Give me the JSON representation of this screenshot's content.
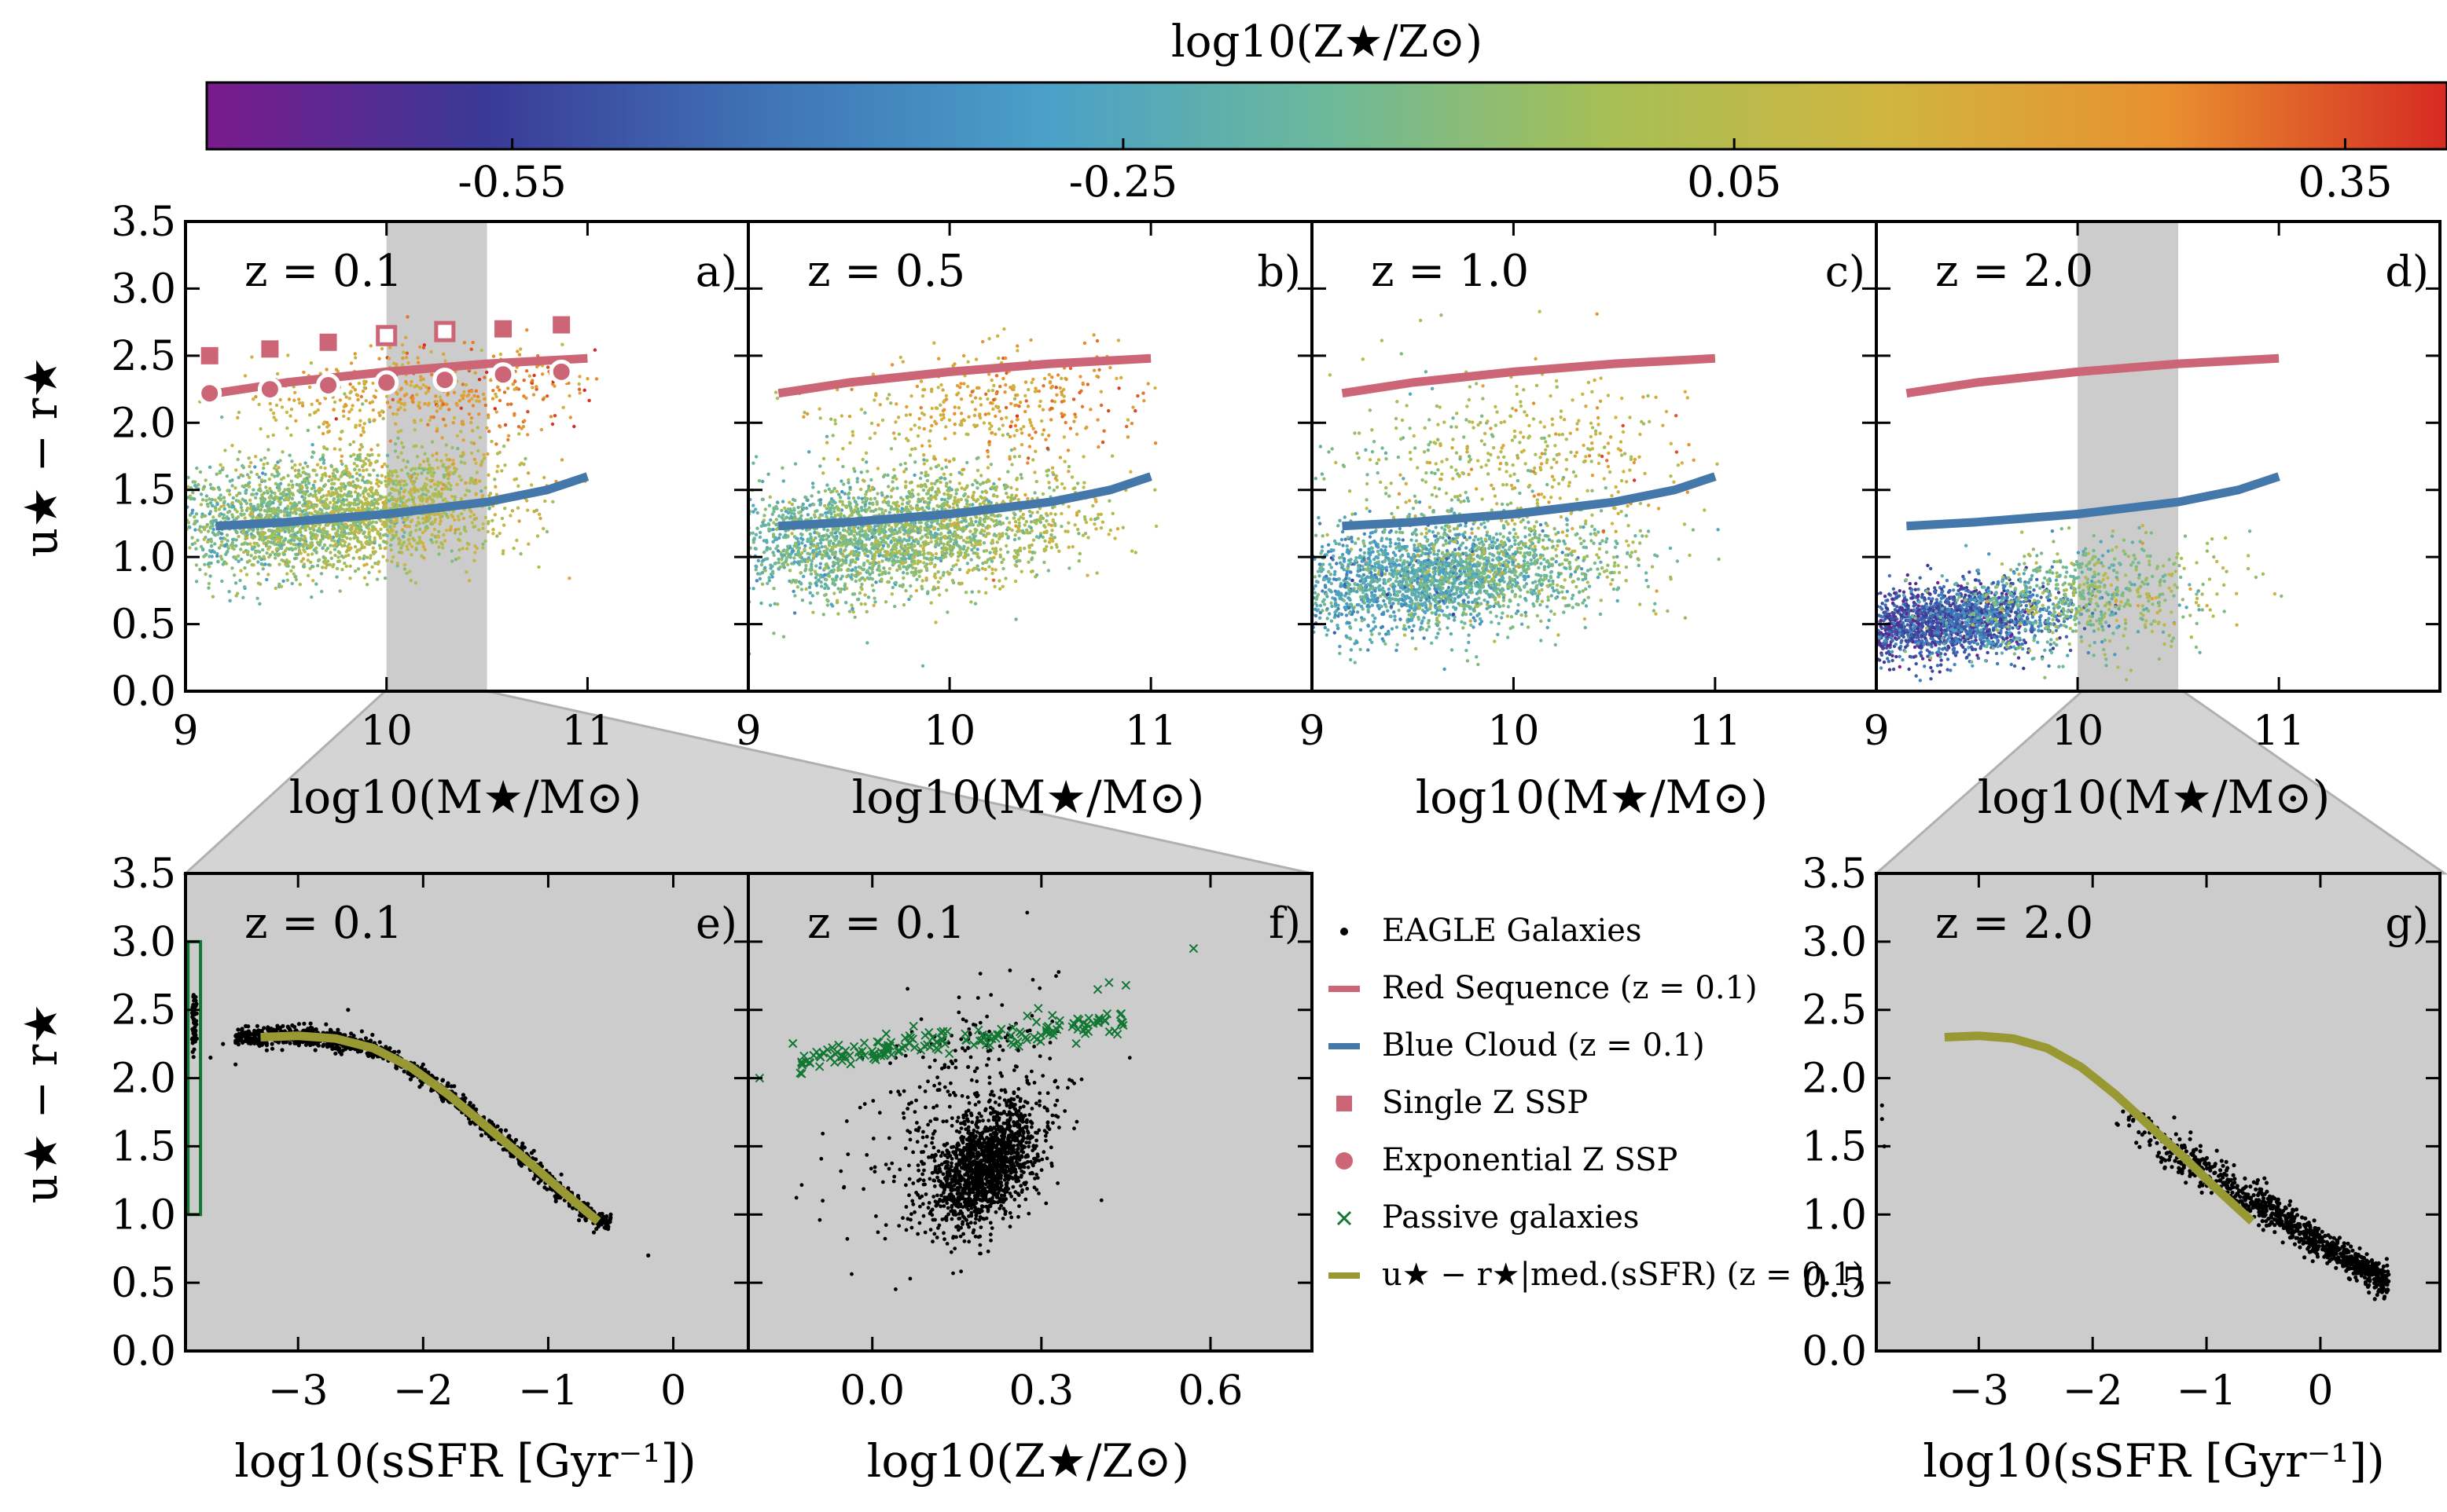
{
  "colorbar": {
    "title": "log10(Z★/Z⊙)",
    "range": [
      -0.7,
      0.4
    ],
    "ticks": [
      -0.55,
      -0.25,
      0.05,
      0.35
    ],
    "tick_labels": [
      "-0.55",
      "-0.25",
      "0.05",
      "0.35"
    ],
    "colormap": [
      "#7a1a8c",
      "#3a3a96",
      "#3f74b6",
      "#4aa0c8",
      "#6cb99a",
      "#a6bf55",
      "#d0b540",
      "#e8902f",
      "#d62a22"
    ]
  },
  "colors": {
    "red_sequence": "#cc6677",
    "blue_cloud": "#4477aa",
    "median_fit": "#999933",
    "passive": "#117733",
    "shade_band": "#cccccc",
    "panel_bg_lower": "#cccccc",
    "eagle_points": "#000000"
  },
  "labels": {
    "ylabel": "u★ − r★",
    "xlabel_mass": "log10(M★/M⊙)",
    "xlabel_ssfr": "log10(sSFR [Gyr⁻¹])",
    "xlabel_z": "log10(Z★/Z⊙)"
  },
  "legend": {
    "items": [
      {
        "marker": "dot",
        "label": "EAGLE Galaxies"
      },
      {
        "marker": "red-line",
        "label": "Red Sequence (z = 0.1)"
      },
      {
        "marker": "blue-line",
        "label": "Blue Cloud (z = 0.1)"
      },
      {
        "marker": "square",
        "label": "Single Z SSP"
      },
      {
        "marker": "circle",
        "label": "Exponential Z SSP"
      },
      {
        "marker": "cross",
        "label": "Passive galaxies"
      },
      {
        "marker": "olive-line",
        "label": "u★ − r★|med.(sSFR) (z = 0.1)"
      }
    ]
  },
  "chart_data": [
    {
      "panel": "a)",
      "redshift_label": "z = 0.1",
      "type": "scatter",
      "xlabel": "log10(M★/M⊙)",
      "ylabel": "u★ − r★",
      "xlim": [
        9.0,
        11.8
      ],
      "ylim": [
        0.0,
        3.5
      ],
      "xticks": [
        9,
        10,
        11
      ],
      "xtick_labels": [
        "9",
        "10",
        "11"
      ],
      "yticks": [
        0.0,
        0.5,
        1.0,
        1.5,
        2.0,
        2.5,
        3.0,
        3.5
      ],
      "ytick_labels": [
        "0.0",
        "0.5",
        "1.0",
        "1.5",
        "2.0",
        "2.5",
        "3.0",
        "3.5"
      ],
      "shaded_band_x": [
        10.0,
        10.5
      ],
      "red_sequence": {
        "x": [
          9.15,
          9.5,
          10.0,
          10.5,
          11.0
        ],
        "y": [
          2.22,
          2.3,
          2.38,
          2.44,
          2.48
        ]
      },
      "blue_cloud": {
        "x": [
          9.15,
          9.5,
          10.0,
          10.5,
          10.8,
          11.0
        ],
        "y": [
          1.23,
          1.26,
          1.32,
          1.41,
          1.5,
          1.6
        ]
      },
      "single_z_ssp": {
        "x": [
          9.12,
          9.42,
          9.71,
          10.0,
          10.29,
          10.58,
          10.87
        ],
        "y": [
          2.5,
          2.55,
          2.6,
          2.65,
          2.68,
          2.7,
          2.73
        ]
      },
      "exponential_z_ssp": {
        "x": [
          9.12,
          9.42,
          9.71,
          10.0,
          10.29,
          10.58,
          10.87
        ],
        "y": [
          2.22,
          2.25,
          2.28,
          2.3,
          2.32,
          2.36,
          2.38
        ]
      },
      "eagle_cloud": [
        {
          "x_mean": 9.7,
          "x_sd": 0.45,
          "y_mean": 1.35,
          "y_sd": 0.22,
          "z_mean": 0.0,
          "z_sd": 0.09,
          "n": 2600
        },
        {
          "x_mean": 10.2,
          "x_sd": 0.45,
          "y_mean": 2.2,
          "y_sd": 0.18,
          "z_mean": 0.18,
          "z_sd": 0.08,
          "n": 500
        }
      ]
    },
    {
      "panel": "b)",
      "redshift_label": "z = 0.5",
      "type": "scatter",
      "xlabel": "log10(M★/M⊙)",
      "xlim": [
        9.0,
        11.8
      ],
      "ylim": [
        0.0,
        3.5
      ],
      "xticks": [
        9,
        10,
        11
      ],
      "xtick_labels": [
        "9",
        "10",
        "11"
      ],
      "red_sequence": {
        "x": [
          9.15,
          9.5,
          10.0,
          10.5,
          11.0
        ],
        "y": [
          2.22,
          2.3,
          2.38,
          2.44,
          2.48
        ]
      },
      "blue_cloud": {
        "x": [
          9.15,
          9.5,
          10.0,
          10.5,
          10.8,
          11.0
        ],
        "y": [
          1.23,
          1.26,
          1.32,
          1.41,
          1.5,
          1.6
        ]
      },
      "eagle_cloud": [
        {
          "x_mean": 9.7,
          "x_sd": 0.45,
          "y_mean": 1.2,
          "y_sd": 0.22,
          "z_mean": -0.05,
          "z_sd": 0.09,
          "n": 2600
        },
        {
          "x_mean": 10.2,
          "x_sd": 0.45,
          "y_mean": 2.1,
          "y_sd": 0.2,
          "z_mean": 0.15,
          "z_sd": 0.08,
          "n": 400
        }
      ]
    },
    {
      "panel": "c)",
      "redshift_label": "z = 1.0",
      "type": "scatter",
      "xlabel": "log10(M★/M⊙)",
      "xlim": [
        9.0,
        11.8
      ],
      "ylim": [
        0.0,
        3.5
      ],
      "xticks": [
        9,
        10,
        11
      ],
      "xtick_labels": [
        "9",
        "10",
        "11"
      ],
      "red_sequence": {
        "x": [
          9.15,
          9.5,
          10.0,
          10.5,
          11.0
        ],
        "y": [
          2.22,
          2.3,
          2.38,
          2.44,
          2.48
        ]
      },
      "blue_cloud": {
        "x": [
          9.15,
          9.5,
          10.0,
          10.5,
          10.8,
          11.0
        ],
        "y": [
          1.23,
          1.26,
          1.32,
          1.41,
          1.5,
          1.6
        ]
      },
      "eagle_cloud": [
        {
          "x_mean": 9.6,
          "x_sd": 0.42,
          "y_mean": 0.9,
          "y_sd": 0.2,
          "z_mean": -0.15,
          "z_sd": 0.1,
          "n": 2500
        },
        {
          "x_mean": 10.0,
          "x_sd": 0.45,
          "y_mean": 1.7,
          "y_sd": 0.35,
          "z_mean": 0.05,
          "z_sd": 0.1,
          "n": 500
        }
      ]
    },
    {
      "panel": "d)",
      "redshift_label": "z = 2.0",
      "type": "scatter",
      "xlabel": "log10(M★/M⊙)",
      "xlim": [
        9.0,
        11.8
      ],
      "ylim": [
        0.0,
        3.5
      ],
      "xticks": [
        9,
        10,
        11
      ],
      "xtick_labels": [
        "9",
        "10",
        "11"
      ],
      "shaded_band_x": [
        10.0,
        10.5
      ],
      "red_sequence": {
        "x": [
          9.15,
          9.5,
          10.0,
          10.5,
          11.0
        ],
        "y": [
          2.22,
          2.3,
          2.38,
          2.44,
          2.48
        ]
      },
      "blue_cloud": {
        "x": [
          9.15,
          9.5,
          10.0,
          10.5,
          10.8,
          11.0
        ],
        "y": [
          1.23,
          1.26,
          1.32,
          1.41,
          1.5,
          1.6
        ]
      },
      "eagle_cloud": [
        {
          "x_mean": 9.35,
          "x_sd": 0.28,
          "y_mean": 0.6,
          "y_sd": 0.13,
          "z_mean": -0.4,
          "z_sd": 0.1,
          "n": 1900
        },
        {
          "x_mean": 10.0,
          "x_sd": 0.35,
          "y_mean": 0.7,
          "y_sd": 0.2,
          "z_mean": -0.1,
          "z_sd": 0.1,
          "n": 700
        }
      ]
    },
    {
      "panel": "e)",
      "redshift_label": "z = 0.1",
      "type": "scatter",
      "xlabel": "log10(sSFR [Gyr⁻¹])",
      "ylabel": "u★ − r★",
      "xlim": [
        -3.9,
        0.6
      ],
      "ylim": [
        0.0,
        3.5
      ],
      "xticks": [
        -3,
        -2,
        -1,
        0
      ],
      "xtick_labels": [
        "−3",
        "−2",
        "−1",
        "0"
      ],
      "yticks": [
        0.0,
        0.5,
        1.0,
        1.5,
        2.0,
        2.5,
        3.0,
        3.5
      ],
      "ytick_labels": [
        "0.0",
        "0.5",
        "1.0",
        "1.5",
        "2.0",
        "2.5",
        "3.0",
        "3.5"
      ],
      "passive_box": {
        "x": [
          -3.88,
          -3.78
        ],
        "y": [
          1.0,
          3.0
        ]
      },
      "median_curve": {
        "x": [
          -3.3,
          -3.0,
          -2.7,
          -2.4,
          -2.1,
          -1.8,
          -1.5,
          -1.2,
          -0.9,
          -0.6
        ],
        "y": [
          2.3,
          2.31,
          2.29,
          2.22,
          2.08,
          1.88,
          1.65,
          1.42,
          1.18,
          0.95
        ]
      },
      "eagle_passive_strip": {
        "x": -3.83,
        "y_mean": 2.4,
        "y_sd": 0.12,
        "n": 60
      },
      "eagle_extra": {
        "x": [
          -3.7,
          -3.6,
          -3.5,
          -3.4,
          -3.2,
          -2.9,
          -2.6,
          -2.0,
          -0.5,
          -0.2
        ],
        "y": [
          2.15,
          2.25,
          2.1,
          2.28,
          2.35,
          2.4,
          2.5,
          2.1,
          1.0,
          0.7
        ]
      }
    },
    {
      "panel": "f)",
      "redshift_label": "z = 0.1",
      "type": "scatter",
      "xlabel": "log10(Z★/Z⊙)",
      "xlim": [
        -0.22,
        0.78
      ],
      "ylim": [
        0.0,
        3.5
      ],
      "xticks": [
        0.0,
        0.3,
        0.6
      ],
      "xtick_labels": [
        "0.0",
        "0.3",
        "0.6"
      ],
      "passive_fit": {
        "x_range": [
          -0.15,
          0.45
        ],
        "slope": 0.9,
        "intercept": 2.2
      },
      "passive_outliers": {
        "x": [
          -0.2,
          0.4,
          0.42,
          0.45,
          0.57
        ],
        "y": [
          2.0,
          2.65,
          2.7,
          2.68,
          2.95
        ]
      },
      "eagle_cloud": [
        {
          "x_mean": 0.2,
          "x_sd": 0.05,
          "y_mean": 1.35,
          "y_sd": 0.2,
          "n": 1500
        },
        {
          "x_mean": 0.15,
          "x_sd": 0.1,
          "y_mean": 1.8,
          "y_sd": 0.4,
          "n": 300
        }
      ]
    },
    {
      "panel": "g)",
      "redshift_label": "z = 2.0",
      "type": "scatter",
      "xlabel": "log10(sSFR [Gyr⁻¹])",
      "xlim": [
        -3.9,
        1.05
      ],
      "ylim": [
        0.0,
        3.5
      ],
      "xticks": [
        -3,
        -2,
        -1,
        0
      ],
      "xtick_labels": [
        "−3",
        "−2",
        "−1",
        "0"
      ],
      "median_curve": {
        "x": [
          -3.3,
          -3.0,
          -2.7,
          -2.4,
          -2.1,
          -1.8,
          -1.5,
          -1.2,
          -0.9,
          -0.6
        ],
        "y": [
          2.3,
          2.31,
          2.29,
          2.22,
          2.08,
          1.88,
          1.65,
          1.42,
          1.18,
          0.95
        ]
      },
      "eagle_trend": {
        "x_range": [
          -1.8,
          0.6
        ],
        "slope": -0.52,
        "intercept": 0.8,
        "y_sd": 0.06,
        "n": 900
      },
      "eagle_extra": {
        "x": [
          -3.85,
          -3.85,
          -3.83,
          -1.5,
          -1.3
        ],
        "y": [
          1.8,
          1.7,
          1.5,
          1.6,
          1.45
        ]
      }
    }
  ]
}
